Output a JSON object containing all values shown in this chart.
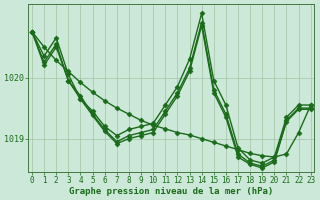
{
  "xlabel": "Graphe pression niveau de la mer (hPa)",
  "line_color": "#1a6b1a",
  "series1": [
    1020.75,
    1020.35,
    1020.65,
    1020.05,
    1019.65,
    1019.45,
    1019.2,
    1019.05,
    1019.15,
    1019.2,
    1019.25,
    1019.55,
    1019.85,
    1020.3,
    1021.05,
    1019.95,
    1019.55,
    1018.85,
    1018.65,
    1018.6,
    1018.7,
    1019.35,
    1019.55,
    1019.55
  ],
  "series2": [
    1020.75,
    1020.25,
    1020.55,
    1019.95,
    1019.7,
    1019.4,
    1019.15,
    1018.95,
    1019.05,
    1019.1,
    1019.15,
    1019.45,
    1019.75,
    1020.15,
    1020.9,
    1019.8,
    1019.4,
    1018.75,
    1018.6,
    1018.55,
    1018.65,
    1019.3,
    1019.5,
    1019.5
  ],
  "series3": [
    1020.75,
    1020.2,
    1020.5,
    1019.95,
    1019.65,
    1019.38,
    1019.12,
    1018.92,
    1019.0,
    1019.05,
    1019.1,
    1019.4,
    1019.7,
    1020.1,
    1020.85,
    1019.75,
    1019.35,
    1018.7,
    1018.58,
    1018.52,
    1018.62,
    1019.28,
    1019.48,
    1019.48
  ],
  "smooth": [
    1020.75,
    1020.5,
    1020.28,
    1020.1,
    1019.92,
    1019.76,
    1019.62,
    1019.5,
    1019.4,
    1019.3,
    1019.22,
    1019.16,
    1019.1,
    1019.06,
    1019.0,
    1018.94,
    1018.88,
    1018.82,
    1018.76,
    1018.72,
    1018.7,
    1018.75,
    1019.1,
    1019.55
  ],
  "ylim": [
    1018.45,
    1021.2
  ],
  "yticks": [
    1019.0,
    1020.0
  ],
  "ytick_labels": [
    "1019",
    "1020"
  ],
  "xticks": [
    0,
    1,
    2,
    3,
    4,
    5,
    6,
    7,
    8,
    9,
    10,
    11,
    12,
    13,
    14,
    15,
    16,
    17,
    18,
    19,
    20,
    21,
    22,
    23
  ],
  "xlim": [
    -0.3,
    23.3
  ],
  "bg_color": "#cce8d8",
  "plot_bg": "#cce8d8",
  "grid_color": "#99bb99",
  "marker": "D",
  "markersize": 2.5,
  "linewidth": 1.0,
  "xlabel_fontsize": 6.5,
  "tick_fontsize": 5.5
}
